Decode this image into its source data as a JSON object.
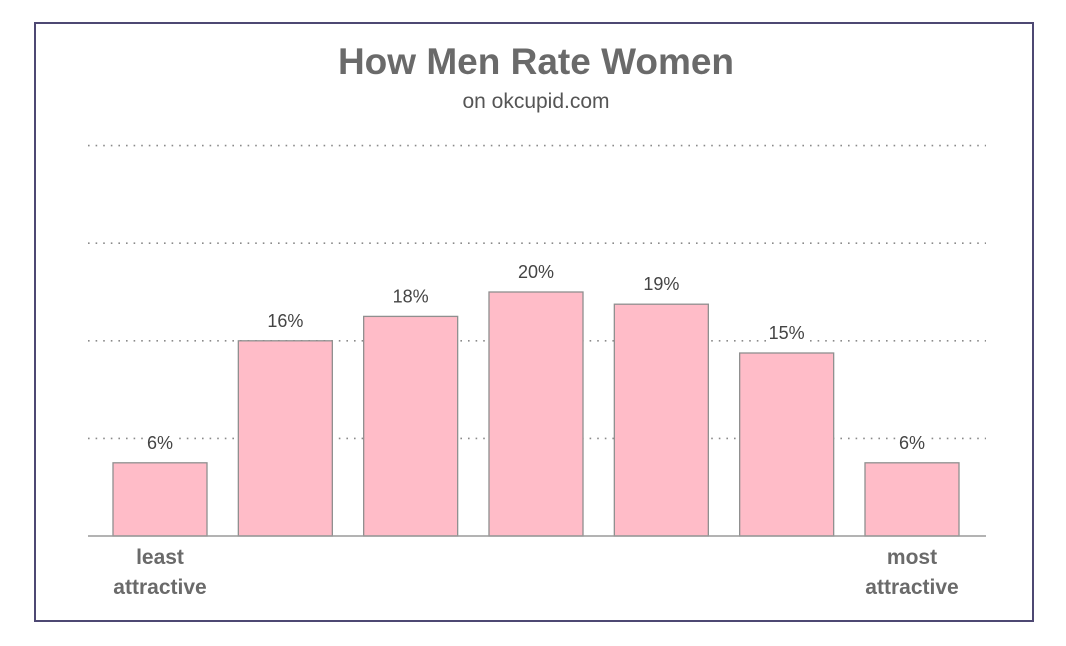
{
  "chart_data": {
    "type": "bar",
    "title": "How Men Rate Women",
    "subtitle": "on okcupid.com",
    "categories": [
      "",
      "",
      "",
      "",
      "",
      "",
      ""
    ],
    "values": [
      6,
      16,
      18,
      20,
      19,
      15,
      6
    ],
    "data_labels": [
      "6%",
      "16%",
      "18%",
      "20%",
      "19%",
      "15%",
      "6%"
    ],
    "ylim": [
      0,
      32
    ],
    "y_gridlines": [
      8,
      16,
      24,
      32
    ],
    "grid": true,
    "y_tick_labels_shown": false,
    "end_labels": {
      "left": [
        "least",
        "attractive"
      ],
      "right": [
        "most",
        "attractive"
      ]
    },
    "colors": {
      "bar_fill": "#ffbcc8",
      "bar_stroke": "#8f8f8f",
      "title": "#6a6a6a",
      "frame": "#4e4873"
    }
  }
}
